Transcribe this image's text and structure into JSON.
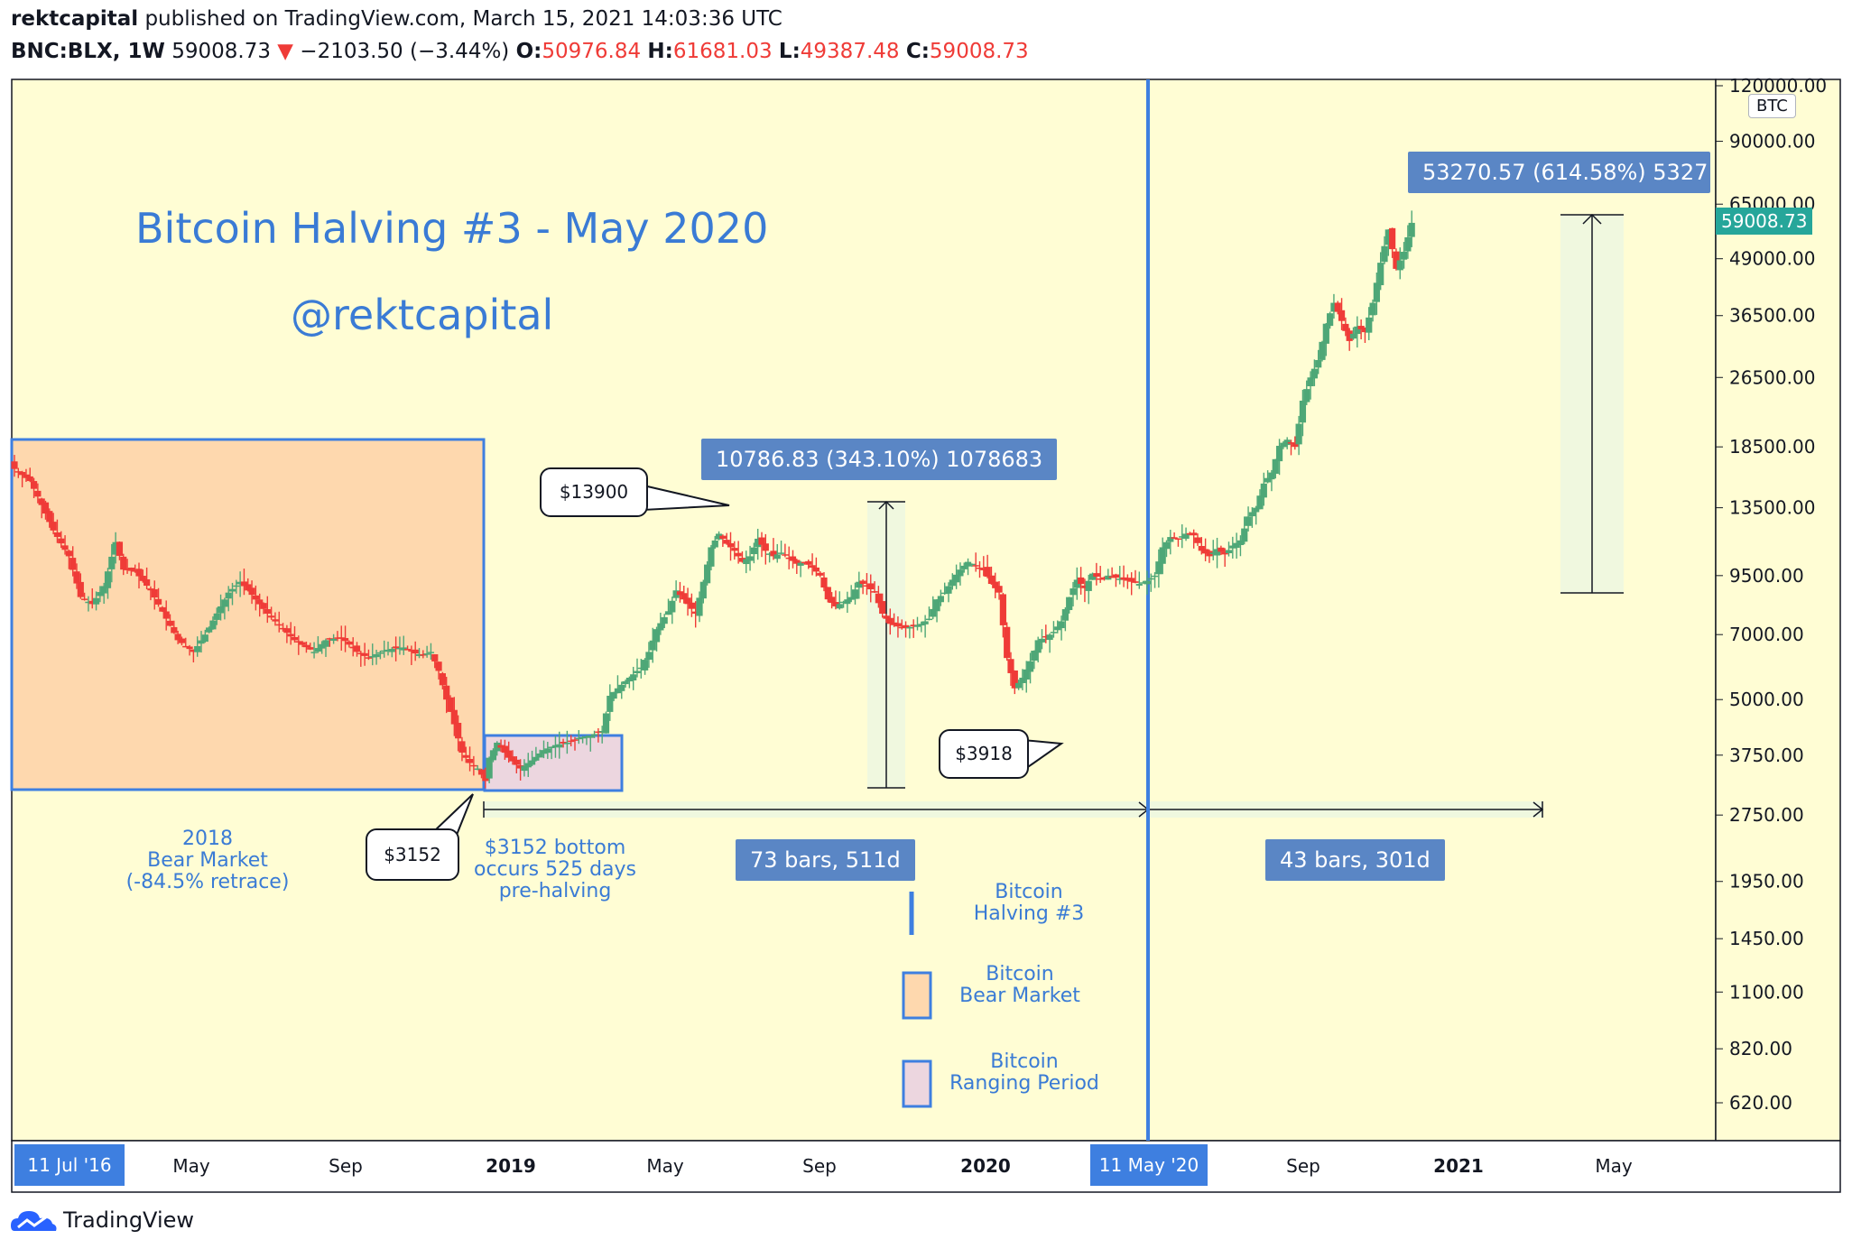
{
  "header": {
    "author": "rektcapital",
    "published": "published on TradingView.com, March 15, 2021 14:03:36 UTC",
    "symbol": "BNC:BLX, 1W",
    "last": "59008.73",
    "change": "−2103.50 (−3.44%)",
    "o_label": "O:",
    "o_value": "50976.84",
    "h_label": "H:",
    "h_value": "61681.03",
    "l_label": "L:",
    "l_value": "49387.48",
    "c_label": "C:",
    "c_value": "59008.73"
  },
  "annotations": {
    "title": "Bitcoin Halving #3 - May 2020",
    "handle": "@rektcapital",
    "bear_note": [
      "2018",
      "Bear Market",
      "(-84.5% retrace)"
    ],
    "bottom_note": [
      "$3152 bottom",
      "occurs 525 days",
      "pre-halving"
    ],
    "callout_3152": "$3152",
    "callout_13900": "$13900",
    "callout_3918": "$3918",
    "range_1": "10786.83 (343.10%) 1078683",
    "range_2": "53270.57 (614.58%) 5327",
    "bars_1": "73 bars, 511d",
    "bars_2": "43 bars, 301d"
  },
  "legend": {
    "halving": [
      "Bitcoin",
      "Halving #3"
    ],
    "bear": [
      "Bitcoin",
      "Bear Market"
    ],
    "ranging": [
      "Bitcoin",
      "Ranging Period"
    ]
  },
  "axis": {
    "currency": "BTC",
    "start_date": "11 Jul '16",
    "halving_date": "11 May '20"
  },
  "footer": {
    "brand": "TradingView"
  },
  "colors": {
    "background": "#fffdd4",
    "up": "#4ea777",
    "down": "#ef3b37",
    "accent": "#3e7fe0",
    "bear_zone": "#fed8ae",
    "range_zone": "#ecd6df",
    "price_tag": "#26a69a"
  },
  "chart_data": {
    "type": "candlestick",
    "timeframe": "1W",
    "y_scale": "log",
    "ylim": [
      530,
      125000
    ],
    "y_ticks": [
      120000,
      90000,
      65000,
      49000,
      36500,
      26500,
      18500,
      13500,
      9500,
      7000,
      5000,
      3750,
      2750,
      1950,
      1450,
      1100,
      820,
      620
    ],
    "x_ticks": [
      "May",
      "Sep",
      "2019",
      "May",
      "Sep",
      "2020",
      "11 May '20",
      "Sep",
      "2021",
      "May"
    ],
    "last_price": 59008.73,
    "path": [
      [
        0,
        16500
      ],
      [
        4,
        15500
      ],
      [
        6,
        14300
      ],
      [
        10,
        12000
      ],
      [
        14,
        10500
      ],
      [
        17,
        8500
      ],
      [
        20,
        8200
      ],
      [
        23,
        9000
      ],
      [
        26,
        11300
      ],
      [
        28,
        9800
      ],
      [
        31,
        9700
      ],
      [
        35,
        8800
      ],
      [
        39,
        7600
      ],
      [
        42,
        6800
      ],
      [
        46,
        6400
      ],
      [
        49,
        7000
      ],
      [
        53,
        8100
      ],
      [
        55,
        8700
      ],
      [
        58,
        9200
      ],
      [
        61,
        8600
      ],
      [
        65,
        7800
      ],
      [
        69,
        7200
      ],
      [
        72,
        6800
      ],
      [
        77,
        6400
      ],
      [
        80,
        6800
      ],
      [
        84,
        6900
      ],
      [
        88,
        6400
      ],
      [
        91,
        6200
      ],
      [
        95,
        6450
      ],
      [
        97,
        6500
      ],
      [
        100,
        6550
      ],
      [
        103,
        6350
      ],
      [
        105,
        6300
      ],
      [
        107,
        6400
      ],
      [
        109,
        5800
      ],
      [
        111,
        5000
      ],
      [
        113,
        4400
      ],
      [
        115,
        3800
      ],
      [
        117,
        3600
      ],
      [
        119,
        3500
      ],
      [
        121,
        3280
      ],
      [
        122,
        3700
      ],
      [
        124,
        4000
      ],
      [
        127,
        3700
      ],
      [
        130,
        3500
      ],
      [
        133,
        3650
      ],
      [
        136,
        3850
      ],
      [
        139,
        3950
      ],
      [
        142,
        4000
      ],
      [
        145,
        4100
      ],
      [
        148,
        4150
      ],
      [
        151,
        4250
      ],
      [
        153,
        5100
      ],
      [
        155,
        5300
      ],
      [
        158,
        5600
      ],
      [
        161,
        5900
      ],
      [
        163,
        6400
      ],
      [
        165,
        7200
      ],
      [
        168,
        7900
      ],
      [
        170,
        8800
      ],
      [
        173,
        8200
      ],
      [
        175,
        7800
      ],
      [
        177,
        9200
      ],
      [
        179,
        11000
      ],
      [
        181,
        11800
      ],
      [
        183,
        11200
      ],
      [
        185,
        10800
      ],
      [
        187,
        10200
      ],
      [
        189,
        10500
      ],
      [
        191,
        11500
      ],
      [
        193,
        10800
      ],
      [
        195,
        10500
      ],
      [
        197,
        10700
      ],
      [
        199,
        10400
      ],
      [
        201,
        10100
      ],
      [
        203,
        10200
      ],
      [
        205,
        9900
      ],
      [
        207,
        9500
      ],
      [
        209,
        8400
      ],
      [
        211,
        8100
      ],
      [
        213,
        8300
      ],
      [
        215,
        8500
      ],
      [
        217,
        9200
      ],
      [
        219,
        9000
      ],
      [
        221,
        8700
      ],
      [
        223,
        7800
      ],
      [
        225,
        7400
      ],
      [
        227,
        7300
      ],
      [
        229,
        7250
      ],
      [
        231,
        7300
      ],
      [
        233,
        7400
      ],
      [
        235,
        7600
      ],
      [
        237,
        8400
      ],
      [
        239,
        8700
      ],
      [
        241,
        9300
      ],
      [
        243,
        9800
      ],
      [
        245,
        10200
      ],
      [
        247,
        10000
      ],
      [
        249,
        9800
      ],
      [
        251,
        9100
      ],
      [
        253,
        8700
      ],
      [
        255,
        6200
      ],
      [
        257,
        5300
      ],
      [
        259,
        5600
      ],
      [
        261,
        6100
      ],
      [
        263,
        6800
      ],
      [
        265,
        6900
      ],
      [
        267,
        7100
      ],
      [
        269,
        7500
      ],
      [
        271,
        8500
      ],
      [
        273,
        9300
      ],
      [
        275,
        8900
      ],
      [
        277,
        9600
      ],
      [
        279,
        9300
      ],
      [
        281,
        9500
      ],
      [
        283,
        9400
      ],
      [
        285,
        9300
      ],
      [
        287,
        9200
      ],
      [
        289,
        9100
      ],
      [
        291,
        9250
      ],
      [
        293,
        9500
      ],
      [
        295,
        11000
      ],
      [
        297,
        11600
      ],
      [
        299,
        11500
      ],
      [
        301,
        11800
      ],
      [
        303,
        11700
      ],
      [
        305,
        10800
      ],
      [
        307,
        10500
      ],
      [
        309,
        10900
      ],
      [
        311,
        10600
      ],
      [
        313,
        11100
      ],
      [
        315,
        11400
      ],
      [
        317,
        12900
      ],
      [
        319,
        13500
      ],
      [
        321,
        15300
      ],
      [
        323,
        16200
      ],
      [
        325,
        18600
      ],
      [
        327,
        19200
      ],
      [
        329,
        18500
      ],
      [
        331,
        23500
      ],
      [
        333,
        26500
      ],
      [
        335,
        29000
      ],
      [
        337,
        35000
      ],
      [
        339,
        39000
      ],
      [
        341,
        35500
      ],
      [
        343,
        32000
      ],
      [
        345,
        34500
      ],
      [
        347,
        33500
      ],
      [
        349,
        39000
      ],
      [
        351,
        48000
      ],
      [
        353,
        57000
      ],
      [
        355,
        46500
      ],
      [
        357,
        50800
      ],
      [
        359,
        59008
      ]
    ]
  }
}
